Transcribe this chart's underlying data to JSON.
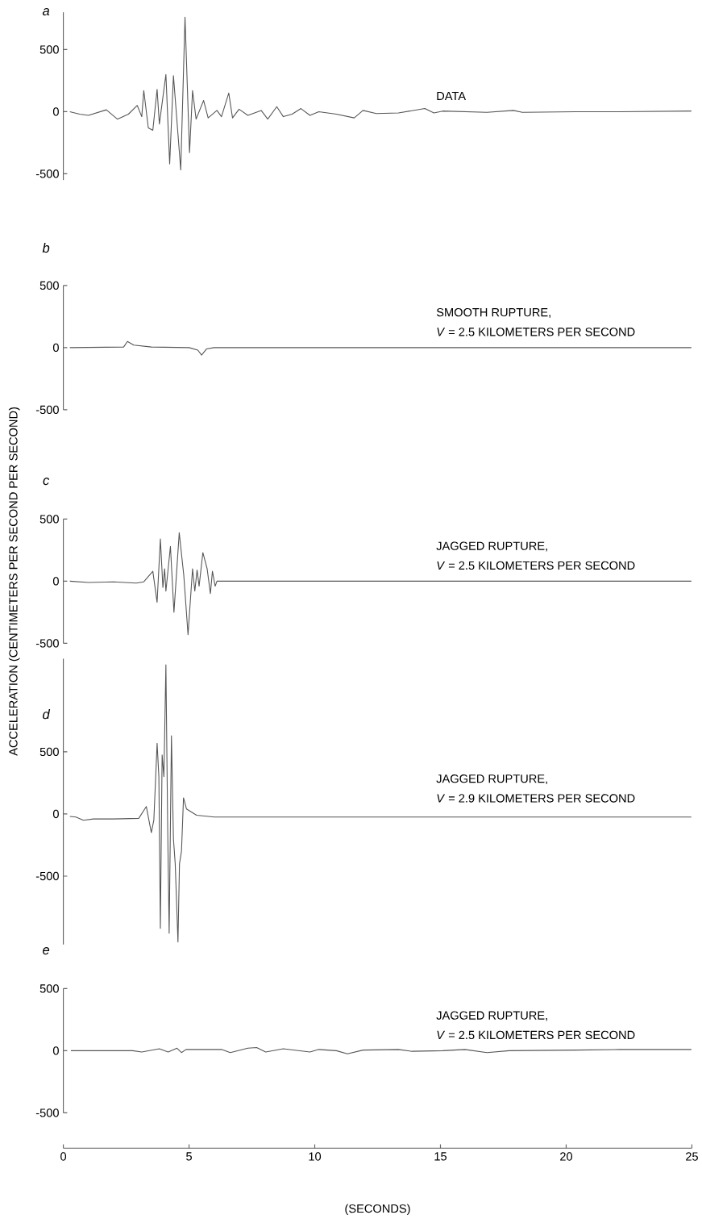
{
  "chart_data": [
    {
      "type": "line",
      "title": "a",
      "annotations": [
        "DATA"
      ],
      "xlim": [
        0,
        25
      ],
      "ylim": [
        -550,
        800
      ],
      "yticks": [
        -500,
        0,
        500
      ],
      "tick_labels": "y",
      "x": [
        0.26,
        0.65,
        1.0,
        1.71,
        2.15,
        2.59,
        2.94,
        3.12,
        3.2,
        3.38,
        3.56,
        3.73,
        3.82,
        4.08,
        4.23,
        4.38,
        4.67,
        4.84,
        5.02,
        5.14,
        5.28,
        5.58,
        5.76,
        6.11,
        6.29,
        6.58,
        6.73,
        6.99,
        7.34,
        7.87,
        8.13,
        8.49,
        8.75,
        9.1,
        9.45,
        9.81,
        10.16,
        10.86,
        11.57,
        11.92,
        12.45,
        13.33,
        14.38,
        14.74,
        15.09,
        16.85,
        17.9,
        18.26,
        20.37,
        22.13,
        24.98
      ],
      "series": [
        {
          "color": "#555555",
          "values": [
            0,
            -20,
            -30,
            15,
            -60,
            -20,
            50,
            -40,
            170,
            -130,
            -150,
            180,
            -100,
            300,
            -420,
            290,
            -470,
            760,
            -330,
            170,
            -60,
            90,
            -50,
            10,
            -40,
            150,
            -50,
            20,
            -30,
            10,
            -60,
            40,
            -40,
            -20,
            25,
            -30,
            0,
            -20,
            -50,
            10,
            -15,
            -10,
            25,
            -10,
            5,
            -5,
            10,
            -5,
            0,
            0,
            5
          ]
        }
      ]
    },
    {
      "type": "line",
      "title": "b",
      "annotations": [
        "SMOOTH RUPTURE,",
        "*V* = 2.5 KILOMETERS PER SECOND"
      ],
      "xlim": [
        0,
        25
      ],
      "ylim": [
        -500,
        500
      ],
      "yticks": [
        -500,
        0,
        500
      ],
      "tick_labels": "y",
      "x": [
        0.26,
        2.4,
        2.55,
        2.8,
        3.5,
        5.0,
        5.35,
        5.5,
        5.7,
        6.0,
        24.98
      ],
      "series": [
        {
          "color": "#555555",
          "values": [
            0,
            5,
            50,
            20,
            5,
            0,
            -20,
            -60,
            -10,
            0,
            0
          ]
        }
      ]
    },
    {
      "type": "line",
      "title": "c",
      "ylabel": "ACCELERATION (CENTIMETERS PER SECOND PER SECOND)",
      "annotations": [
        "JAGGED RUPTURE,",
        "*V* = 2.5 KILOMETERS PER SECOND"
      ],
      "xlim": [
        0,
        25
      ],
      "ylim": [
        -500,
        500
      ],
      "yticks": [
        -500,
        0,
        500
      ],
      "tick_labels": "y",
      "x": [
        0.26,
        1.0,
        2.0,
        2.9,
        3.2,
        3.56,
        3.73,
        3.86,
        3.96,
        4.03,
        4.08,
        4.26,
        4.4,
        4.61,
        4.79,
        4.96,
        5.14,
        5.23,
        5.32,
        5.4,
        5.55,
        5.72,
        5.85,
        5.93,
        6.04,
        6.11,
        24.98
      ],
      "series": [
        {
          "color": "#555555",
          "values": [
            0,
            -10,
            -5,
            -15,
            -5,
            80,
            -170,
            340,
            -50,
            100,
            -80,
            280,
            -250,
            390,
            50,
            -430,
            100,
            -80,
            90,
            -40,
            230,
            100,
            -100,
            80,
            -40,
            0,
            0
          ]
        }
      ]
    },
    {
      "type": "line",
      "title": "d",
      "annotations": [
        "JAGGED RUPTURE,",
        "*V* = 2.9 KILOMETERS PER SECOND"
      ],
      "xlim": [
        0,
        25
      ],
      "ylim": [
        -1050,
        1250
      ],
      "yticks": [
        -500,
        0,
        500
      ],
      "tick_labels": "y",
      "x": [
        0.26,
        0.5,
        0.8,
        1.2,
        2.0,
        3.0,
        3.3,
        3.5,
        3.6,
        3.73,
        3.8,
        3.86,
        3.93,
        4.0,
        4.08,
        4.15,
        4.21,
        4.3,
        4.38,
        4.45,
        4.56,
        4.62,
        4.7,
        4.78,
        4.9,
        5.3,
        6.0,
        24.98
      ],
      "series": [
        {
          "color": "#555555",
          "values": [
            -20,
            -25,
            -50,
            -40,
            -40,
            -35,
            60,
            -150,
            -50,
            570,
            300,
            -920,
            475,
            300,
            1200,
            -100,
            -960,
            630,
            -200,
            -400,
            -1030,
            -400,
            -300,
            130,
            40,
            -10,
            -25,
            -25
          ]
        }
      ]
    },
    {
      "type": "line",
      "title": "e",
      "xlabel": "(SECONDS)",
      "annotations": [
        "JAGGED RUPTURE,",
        "*V* = 2.5 KILOMETERS PER SECOND"
      ],
      "xlim": [
        0,
        25
      ],
      "xticks": [
        0,
        5,
        10,
        15,
        20,
        25
      ],
      "ylim": [
        -500,
        500
      ],
      "yticks": [
        -500,
        0,
        500
      ],
      "x": [
        0.3,
        2.76,
        3.12,
        3.82,
        4.17,
        4.52,
        4.7,
        4.88,
        6.29,
        6.64,
        7.34,
        7.69,
        8.05,
        8.75,
        9.81,
        10.16,
        10.86,
        11.3,
        11.92,
        13.33,
        13.86,
        15.09,
        15.97,
        16.85,
        17.73,
        20.37,
        22.13,
        24.98
      ],
      "series": [
        {
          "color": "#555555",
          "values": [
            0,
            0,
            -10,
            15,
            -10,
            20,
            -15,
            10,
            10,
            -15,
            20,
            25,
            -10,
            15,
            -10,
            10,
            0,
            -25,
            5,
            10,
            -5,
            0,
            10,
            -15,
            0,
            5,
            10,
            10
          ]
        }
      ]
    }
  ]
}
